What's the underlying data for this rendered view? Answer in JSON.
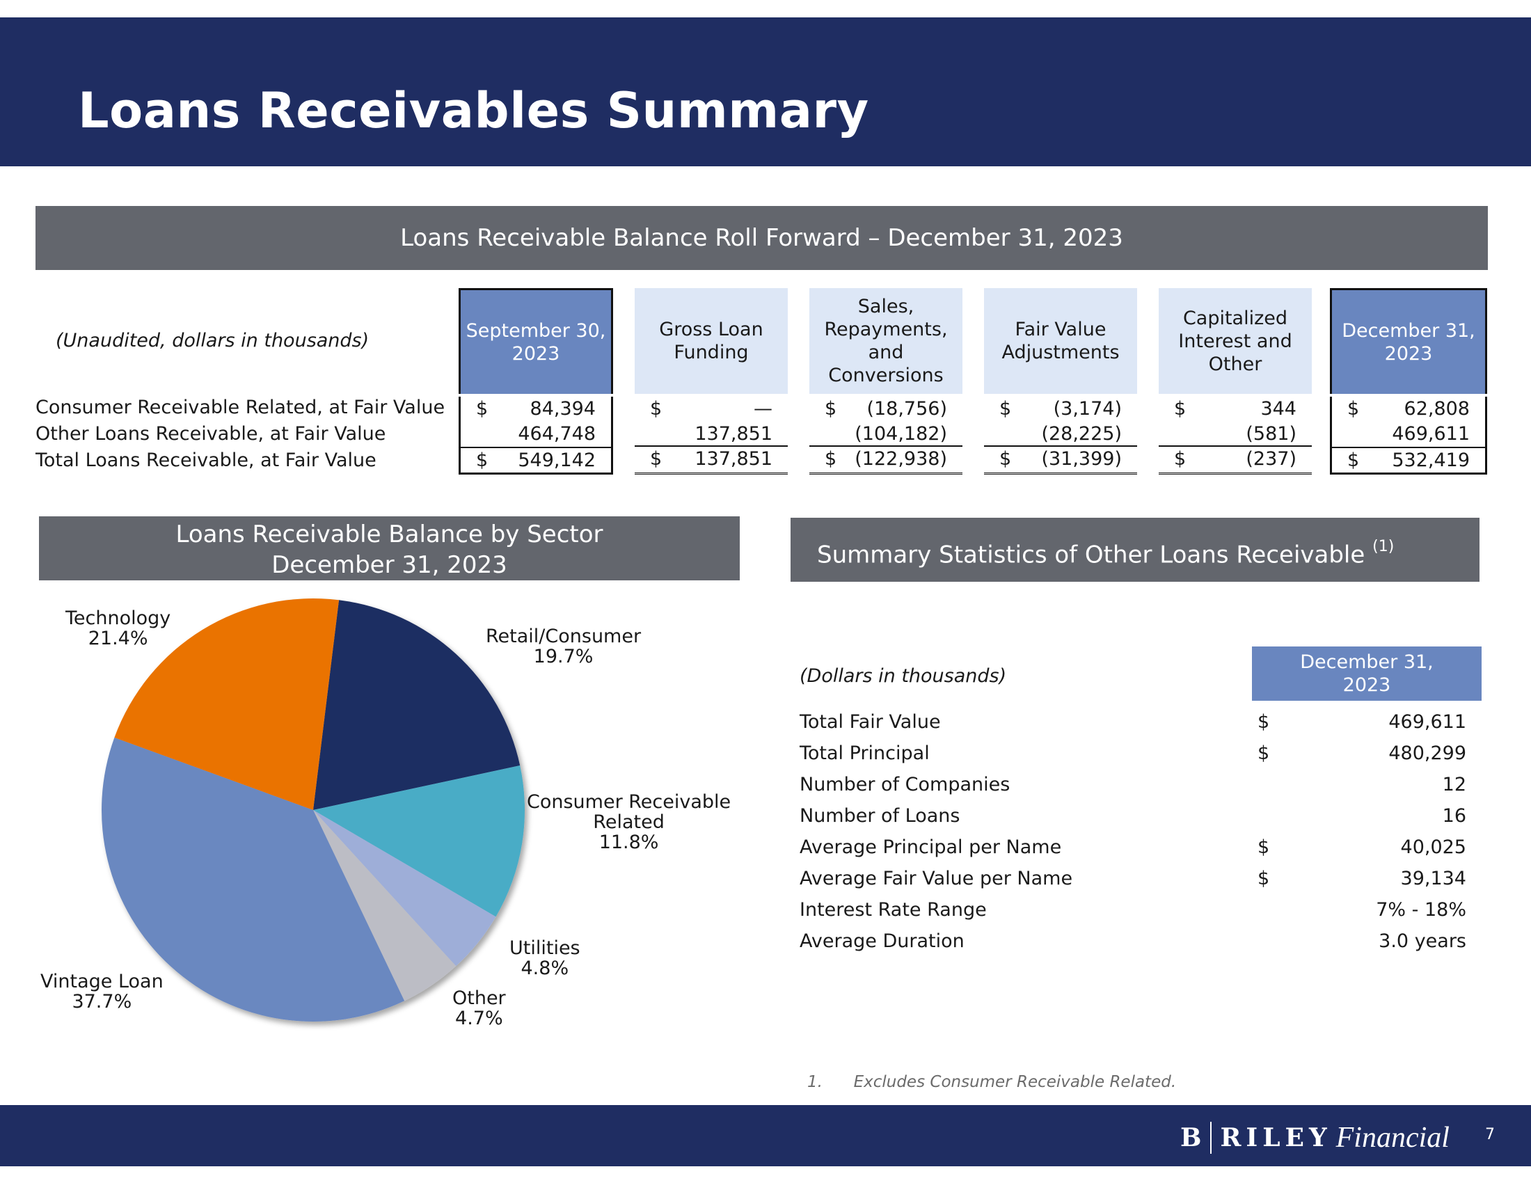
{
  "header": {
    "title": "Loans Receivables Summary"
  },
  "roll_forward": {
    "title": "Loans Receivable Balance Roll Forward – December 31, 2023",
    "unit_note": "(Unaudited, dollars in thousands)",
    "columns": [
      "September 30, 2023",
      "Gross Loan Funding",
      "Sales, Repayments, and Conversions",
      "Fair Value Adjustments",
      "Capitalized Interest and Other",
      "December 31, 2023"
    ],
    "rows": [
      {
        "label": "Consumer Receivable Related, at Fair Value",
        "values": [
          "84,394",
          "—",
          "(18,756)",
          "(3,174)",
          "344",
          "62,808"
        ]
      },
      {
        "label": "Other Loans Receivable, at Fair Value",
        "values": [
          "464,748",
          "137,851",
          "(104,182)",
          "(28,225)",
          "(581)",
          "469,611"
        ]
      },
      {
        "label": "Total Loans Receivable, at Fair Value",
        "values": [
          "549,142",
          "137,851",
          "(122,938)",
          "(31,399)",
          "(237)",
          "532,419"
        ]
      }
    ],
    "currency_symbol": "$"
  },
  "sector": {
    "title_line1": "Loans Receivable Balance by Sector",
    "title_line2": "December 31, 2023"
  },
  "chart_data": {
    "type": "pie",
    "title": "Loans Receivable Balance by Sector – December 31, 2023",
    "slices": [
      {
        "name": "Retail/Consumer",
        "label": "Retail/Consumer",
        "value": 19.7,
        "pct": "19.7%",
        "color": "#1f2d62"
      },
      {
        "name": "Consumer Receivable Related",
        "label": "Consumer Receivable Related",
        "value": 11.8,
        "pct": "11.8%",
        "color": "#4aacc6"
      },
      {
        "name": "Utilities",
        "label": "Utilities",
        "value": 4.8,
        "pct": "4.8%",
        "color": "#9eaed8"
      },
      {
        "name": "Other",
        "label": "Other",
        "value": 4.7,
        "pct": "4.7%",
        "color": "#bcbdc5"
      },
      {
        "name": "Vintage Loan",
        "label": "Vintage Loan",
        "value": 37.7,
        "pct": "37.7%",
        "color": "#6a88c0"
      },
      {
        "name": "Technology",
        "label": "Technology",
        "value": 21.4,
        "pct": "21.4%",
        "color": "#ea7304"
      }
    ]
  },
  "stats": {
    "title": "Summary Statistics of Other Loans Receivable",
    "title_sup": "(1)",
    "unit_note": "(Dollars in thousands)",
    "column_header": "December 31, 2023",
    "rows": [
      {
        "label": "Total Fair Value",
        "symbol": "$",
        "value": "469,611"
      },
      {
        "label": "Total Principal",
        "symbol": "$",
        "value": "480,299"
      },
      {
        "label": "Number of Companies",
        "symbol": "",
        "value": "12"
      },
      {
        "label": "Number of Loans",
        "symbol": "",
        "value": "16"
      },
      {
        "label": "Average Principal per Name",
        "symbol": "$",
        "value": "40,025"
      },
      {
        "label": "Average Fair Value per Name",
        "symbol": "$",
        "value": "39,134"
      },
      {
        "label": "Interest Rate Range",
        "symbol": "",
        "value": "7% - 18%"
      },
      {
        "label": "Average Duration",
        "symbol": "",
        "value": "3.0 years"
      }
    ]
  },
  "footnote": {
    "number": "1.",
    "text": "Excludes Consumer Receivable Related."
  },
  "footer": {
    "logo_left": "B",
    "logo_mid": "RILEY",
    "logo_right": "Financial",
    "page_number": "7"
  },
  "colors": {
    "navy": "#1f2d62",
    "gray_bar": "#63666d",
    "header_blue": "#6986bf",
    "header_light": "#dde7f6"
  }
}
